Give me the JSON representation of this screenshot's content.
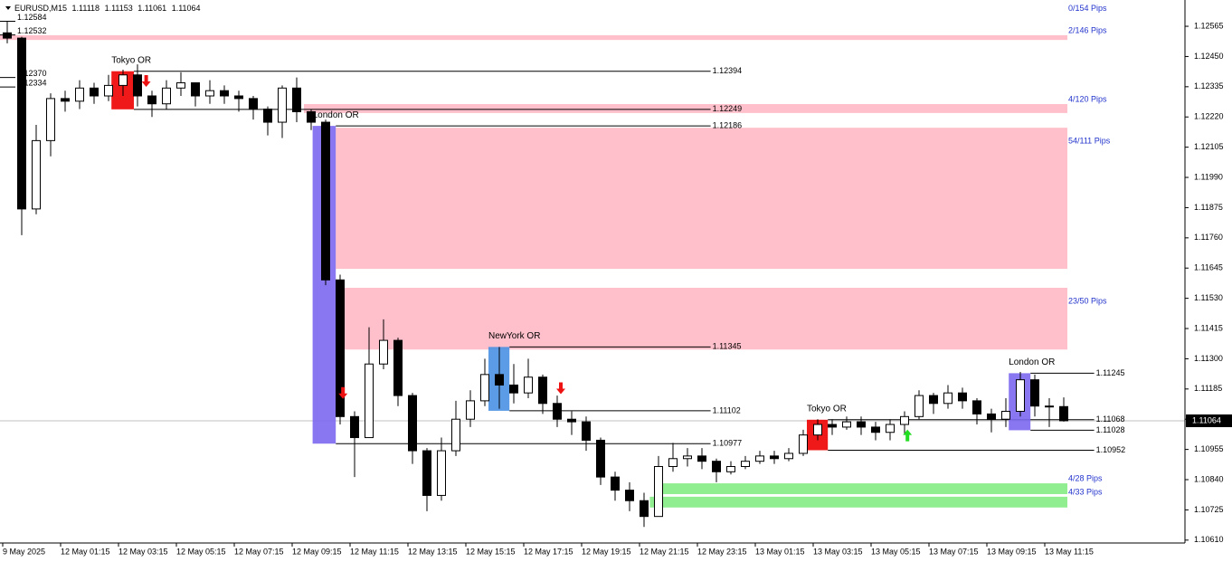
{
  "chart_data": {
    "type": "candlestick",
    "title": "EURUSD,M15",
    "time_labels": [
      "9 May 2025",
      "12 May 01:15",
      "12 May 03:15",
      "12 May 05:15",
      "12 May 07:15",
      "12 May 09:15",
      "12 May 11:15",
      "12 May 13:15",
      "12 May 15:15",
      "12 May 17:15",
      "12 May 19:15",
      "12 May 21:15",
      "12 May 23:15",
      "13 May 01:15",
      "13 May 03:15",
      "13 May 05:15",
      "13 May 07:15",
      "13 May 09:15",
      "13 May 11:15"
    ],
    "open": [
      1.1254,
      1.1252,
      1.1187,
      1.1213,
      1.1229,
      1.1228,
      1.1233,
      1.123,
      1.1234,
      1.1238,
      1.123,
      1.1227,
      1.1233,
      1.1235,
      1.123,
      1.1232,
      1.123,
      1.1229,
      1.1225,
      1.122,
      1.1233,
      1.1224,
      1.122,
      1.116,
      1.1108,
      1.11,
      1.1128,
      1.1137,
      1.1116,
      1.1095,
      1.1078,
      1.1095,
      1.1107,
      1.1114,
      1.1124,
      1.112,
      1.1117,
      1.1123,
      1.1113,
      1.1107,
      1.1106,
      1.1099,
      1.1085,
      1.108,
      1.1076,
      1.107,
      1.1089,
      1.1092,
      1.1093,
      1.1091,
      1.1087,
      1.1089,
      1.1091,
      1.1093,
      1.1092,
      1.1094,
      1.1101,
      1.1105,
      1.1104,
      1.1106,
      1.1104,
      1.1102,
      1.1105,
      1.1108,
      1.1116,
      1.1113,
      1.1117,
      1.1114,
      1.1109,
      1.1107,
      1.111,
      1.1122,
      1.1112,
      1.11118
    ],
    "high": [
      1.12584,
      1.12525,
      1.1219,
      1.1231,
      1.1232,
      1.1236,
      1.1235,
      1.1238,
      1.124,
      1.1242,
      1.1232,
      1.1236,
      1.1239,
      1.1235,
      1.1236,
      1.1234,
      1.1232,
      1.123,
      1.1226,
      1.1234,
      1.1237,
      1.1225,
      1.1221,
      1.1162,
      1.111,
      1.1142,
      1.1145,
      1.1138,
      1.1117,
      1.1096,
      1.11,
      1.1114,
      1.1118,
      1.113,
      1.11345,
      1.1128,
      1.113,
      1.1124,
      1.1116,
      1.111,
      1.1108,
      1.11,
      1.1087,
      1.1083,
      1.1079,
      1.1093,
      1.1098,
      1.1096,
      1.1096,
      1.1092,
      1.1091,
      1.1093,
      1.1095,
      1.1095,
      1.1096,
      1.1103,
      1.1107,
      1.1107,
      1.1108,
      1.1108,
      1.1106,
      1.1107,
      1.111,
      1.1118,
      1.1117,
      1.112,
      1.1119,
      1.1115,
      1.1111,
      1.1115,
      1.1125,
      1.1124,
      1.1115,
      1.11153
    ],
    "low": [
      1.125,
      1.1177,
      1.1185,
      1.1207,
      1.1224,
      1.1225,
      1.1227,
      1.1228,
      1.123,
      1.1226,
      1.1222,
      1.1225,
      1.123,
      1.1226,
      1.1227,
      1.1227,
      1.1224,
      1.1221,
      1.1215,
      1.1214,
      1.122,
      1.1217,
      1.1158,
      1.1105,
      1.1085,
      1.11,
      1.1126,
      1.1112,
      1.109,
      1.1072,
      1.1076,
      1.1093,
      1.1104,
      1.1112,
      1.1111,
      1.1113,
      1.1115,
      1.1109,
      1.1104,
      1.1101,
      1.1095,
      1.1082,
      1.1076,
      1.1072,
      1.1066,
      1.107,
      1.1087,
      1.1089,
      1.1088,
      1.1083,
      1.1086,
      1.1088,
      1.109,
      1.109,
      1.1091,
      1.1093,
      1.1099,
      1.1101,
      1.1103,
      1.1101,
      1.1099,
      1.1099,
      1.1101,
      1.1107,
      1.1109,
      1.1111,
      1.1111,
      1.1105,
      1.1102,
      1.1104,
      1.1108,
      1.1108,
      1.1104,
      1.11061
    ],
    "close": [
      1.1252,
      1.1187,
      1.1213,
      1.1229,
      1.1228,
      1.1233,
      1.123,
      1.1234,
      1.1238,
      1.123,
      1.1227,
      1.1233,
      1.1235,
      1.123,
      1.1232,
      1.123,
      1.1229,
      1.1225,
      1.122,
      1.1233,
      1.1224,
      1.122,
      1.116,
      1.1108,
      1.11,
      1.1128,
      1.1137,
      1.1116,
      1.1095,
      1.1078,
      1.1095,
      1.1107,
      1.1114,
      1.1124,
      1.112,
      1.1117,
      1.1123,
      1.1113,
      1.1107,
      1.1106,
      1.1099,
      1.1085,
      1.108,
      1.1076,
      1.107,
      1.1089,
      1.1092,
      1.1093,
      1.1091,
      1.1087,
      1.1089,
      1.1091,
      1.1093,
      1.1092,
      1.1094,
      1.1101,
      1.1105,
      1.1104,
      1.1106,
      1.1104,
      1.1102,
      1.1105,
      1.1108,
      1.1116,
      1.1113,
      1.1117,
      1.1114,
      1.1109,
      1.1107,
      1.111,
      1.1122,
      1.1112,
      1.11118,
      1.11064
    ],
    "ylim": [
      1.10599,
      1.12665
    ],
    "yticks": [
      1.12565,
      {
        "value": 1.1245,
        "label": "1.12450"
      },
      1.12335,
      {
        "value": 1.1222,
        "label": "1.12220"
      },
      1.12105,
      {
        "value": 1.1199,
        "label": "1.11990"
      },
      1.11875,
      {
        "value": 1.1176,
        "label": "1.11760"
      },
      1.11645,
      {
        "value": 1.1153,
        "label": "1.11530"
      },
      1.11415,
      {
        "value": 1.113,
        "label": "1.11300"
      },
      1.11185,
      {
        "value": 1.1107,
        "label": "1.11070"
      },
      1.10955,
      {
        "value": 1.1084,
        "label": "1.10840"
      },
      1.10725,
      {
        "value": 1.1061,
        "label": "1.10610"
      }
    ],
    "grid": false,
    "current_price": 1.11064,
    "zones": [
      {
        "label": "0/154 Pips",
        "from": 1.12615,
        "to": 1.12615,
        "start": -0.5,
        "end": 73.25,
        "color": "#ffc0cb"
      },
      {
        "label": "2/146 Pips",
        "from": 1.12513,
        "to": 1.12531,
        "start": -0.5,
        "end": 73.25,
        "color": "#ffc0cb"
      },
      {
        "label": "4/120 Pips",
        "from": 1.12235,
        "to": 1.12269,
        "start": 20.5,
        "end": 73.25,
        "color": "#ffc0cb"
      },
      {
        "label": "54/111 Pips",
        "from": 1.11642,
        "to": 1.12179,
        "start": 22.7,
        "end": 73.25,
        "color": "#ffc0cb"
      },
      {
        "label": "23/50 Pips",
        "from": 1.11335,
        "to": 1.1157,
        "start": 22.7,
        "end": 73.25,
        "color": "#ffc0cb"
      },
      {
        "label": "4/28 Pips",
        "from": 1.10785,
        "to": 1.10826,
        "start": 44.9,
        "end": 73.25,
        "color": "#90ee90"
      },
      {
        "label": "4/33 Pips",
        "from": 1.10734,
        "to": 1.10775,
        "start": 44.4,
        "end": 73.25,
        "color": "#90ee90"
      }
    ],
    "levels": [
      {
        "price": 1.12394,
        "start": 8.75,
        "end": 48.6
      },
      {
        "price": 1.12249,
        "start": 8.75,
        "end": 48.6
      },
      {
        "price": 1.12186,
        "start": 22.7,
        "end": 48.6
      },
      {
        "price": 1.11345,
        "start": 34.7,
        "end": 48.6
      },
      {
        "price": 1.11102,
        "start": 34.7,
        "end": 48.6
      },
      {
        "price": 1.10977,
        "start": 22.7,
        "end": 48.6
      },
      {
        "price": 1.11245,
        "start": 70.7,
        "end": 75.1
      },
      {
        "price": 1.11068,
        "start": 56.7,
        "end": 75.1
      },
      {
        "price": 1.11028,
        "start": 70.7,
        "end": 75.1
      },
      {
        "price": 1.10952,
        "start": 56.7,
        "end": 75.1
      }
    ],
    "left_levels": [
      1.12584,
      1.12532,
      {
        "value": 1.1237,
        "label": "1.12370"
      },
      1.12334
    ],
    "boxes": [
      {
        "label": "Tokyo OR",
        "start": 7.2,
        "end": 8.75,
        "high": 1.12394,
        "low": 1.12249,
        "color": "#ee0000"
      },
      {
        "label": "London OR",
        "start": 21.1,
        "end": 22.7,
        "high": 1.12186,
        "low": 1.10977,
        "color": "#7b68ee"
      },
      {
        "label": "NewYork OR",
        "start": 33.25,
        "end": 34.7,
        "high": 1.11345,
        "low": 1.11102,
        "color": "#4a90e2"
      },
      {
        "label": "Tokyo OR",
        "start": 55.25,
        "end": 56.7,
        "high": 1.11068,
        "low": 1.10952,
        "color": "#ee0000"
      },
      {
        "label": "London OR",
        "start": 69.2,
        "end": 70.7,
        "high": 1.11245,
        "low": 1.11028,
        "color": "#7b68ee"
      }
    ],
    "signals": [
      {
        "index": 9.6,
        "price": 1.12355,
        "direction": "down",
        "color": "#ee1111"
      },
      {
        "index": 23.2,
        "price": 1.11168,
        "direction": "down",
        "color": "#ee1111"
      },
      {
        "index": 38.25,
        "price": 1.11186,
        "direction": "down",
        "color": "#ee1111"
      },
      {
        "index": 62.2,
        "price": 1.1101,
        "direction": "up",
        "color": "#22dd22"
      }
    ]
  }
}
